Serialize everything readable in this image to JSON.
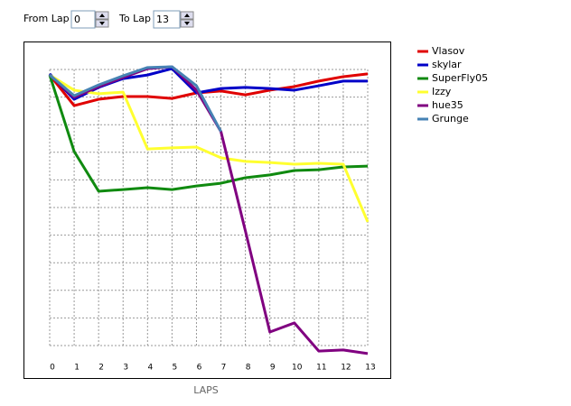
{
  "controls": {
    "from_label": "From Lap",
    "from_value": 0,
    "to_label": "To Lap",
    "to_value": 13
  },
  "chart_data": {
    "type": "line",
    "xlabel": "LAPS",
    "x": [
      0,
      1,
      2,
      3,
      4,
      5,
      6,
      7,
      8,
      9,
      10,
      11,
      12,
      13
    ],
    "xlim": [
      0,
      13
    ],
    "xticks": [
      0,
      1,
      2,
      3,
      4,
      5,
      6,
      7,
      8,
      9,
      10,
      11,
      12,
      13
    ],
    "ylim": [
      -0.5,
      10.5
    ],
    "yticks": [
      0,
      1,
      2,
      3,
      4,
      5,
      6,
      7,
      8,
      9,
      10
    ],
    "grid": true,
    "legend": "right",
    "series": [
      {
        "name": "Vlasov",
        "color": "#e00000",
        "values": [
          9.8,
          8.69,
          8.92,
          9.02,
          9.02,
          8.95,
          9.15,
          9.22,
          9.08,
          9.25,
          9.38,
          9.58,
          9.74,
          9.84
        ]
      },
      {
        "name": "skylar",
        "color": "#0000c8",
        "values": [
          9.84,
          8.92,
          9.35,
          9.67,
          9.8,
          10.03,
          9.15,
          9.31,
          9.35,
          9.31,
          9.25,
          9.41,
          9.58,
          9.58
        ]
      },
      {
        "name": "SuperFly05",
        "color": "#108a10",
        "values": [
          9.8,
          7.03,
          5.59,
          5.65,
          5.72,
          5.65,
          5.78,
          5.88,
          6.08,
          6.18,
          6.34,
          6.37,
          6.47,
          6.5
        ]
      },
      {
        "name": "Izzy",
        "color": "#ffff30",
        "values": [
          9.8,
          9.25,
          9.12,
          9.18,
          7.12,
          7.16,
          7.19,
          6.8,
          6.67,
          6.63,
          6.57,
          6.6,
          6.57,
          4.48
        ]
      },
      {
        "name": "hue35",
        "color": "#800080",
        "values": [
          9.8,
          8.99,
          9.38,
          9.71,
          10.03,
          10.1,
          9.25,
          7.75,
          4.15,
          0.49,
          0.82,
          -0.2,
          -0.16,
          -0.29
        ]
      },
      {
        "name": "Grunge",
        "color": "#4682b4",
        "values": [
          9.8,
          9.05,
          9.44,
          9.77,
          10.07,
          10.1,
          9.41,
          7.75,
          null,
          null,
          null,
          null,
          null,
          null
        ]
      }
    ]
  }
}
